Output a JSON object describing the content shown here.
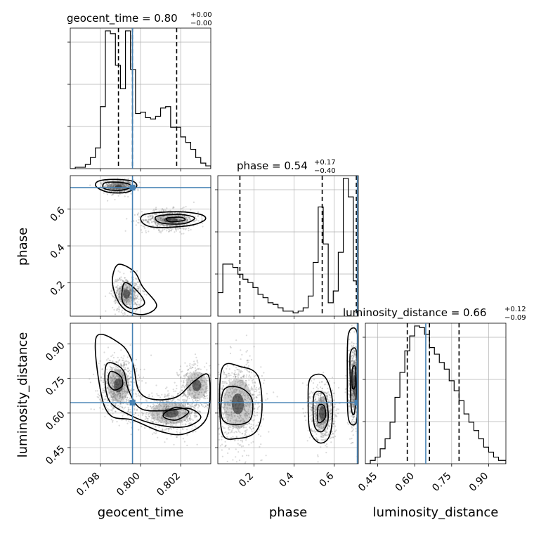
{
  "chart_data": {
    "type": "corner",
    "parameters": [
      "geocent_time",
      "phase",
      "luminosity_distance"
    ],
    "truth": {
      "geocent_time": 0.7996,
      "phase": 0.715,
      "luminosity_distance": 0.645
    },
    "colors": {
      "truth": "#4682b4",
      "hist": "#000000",
      "grid": "#b0b0b0",
      "scatter": "#555555"
    },
    "panels": {
      "geocent_time_hist": {
        "title_main": "geocent_time = 0.80",
        "title_sup": "+0.00",
        "title_sub": "−0.00",
        "xlim": [
          0.7965,
          0.8035
        ],
        "quantiles": [
          0.7989,
          0.7996,
          0.8018
        ],
        "bins": [
          0.7965,
          0.79675,
          0.797,
          0.79725,
          0.7975,
          0.79775,
          0.798,
          0.79825,
          0.7985,
          0.79875,
          0.799,
          0.79925,
          0.7995,
          0.79975,
          0.8,
          0.80025,
          0.8005,
          0.80075,
          0.801,
          0.80125,
          0.8015,
          0.80175,
          0.802,
          0.80225,
          0.8025,
          0.80275,
          0.803,
          0.80325,
          0.8035
        ],
        "counts": [
          0,
          1,
          1,
          3,
          8,
          15,
          45,
          100,
          98,
          75,
          58,
          100,
          72,
          40,
          41,
          37,
          36,
          38,
          44,
          45,
          30,
          30,
          23,
          19,
          14,
          8,
          4,
          2
        ]
      },
      "phase_hist": {
        "title_main": "phase = 0.54",
        "title_sup": "+0.17",
        "title_sub": "−0.40",
        "xlim": [
          0.02,
          0.72
        ],
        "quantiles": [
          0.13,
          0.54,
          0.71
        ],
        "bins": [
          0.02,
          0.045,
          0.07,
          0.095,
          0.12,
          0.145,
          0.17,
          0.195,
          0.22,
          0.245,
          0.27,
          0.295,
          0.32,
          0.345,
          0.37,
          0.395,
          0.42,
          0.445,
          0.47,
          0.495,
          0.52,
          0.545,
          0.57,
          0.595,
          0.62,
          0.645,
          0.67,
          0.695,
          0.72
        ],
        "counts": [
          14,
          31,
          31,
          29,
          25,
          22,
          20,
          17,
          13,
          11,
          8,
          7,
          5,
          3,
          3,
          2,
          3,
          5,
          12,
          32,
          65,
          43,
          8,
          15,
          38,
          82,
          71,
          21
        ]
      },
      "luminosity_distance_hist": {
        "title_main": "luminosity_distance = 0.66",
        "title_sup": "+0.12",
        "title_sub": "−0.09",
        "xlim": [
          0.4,
          0.97
        ],
        "quantiles": [
          0.57,
          0.66,
          0.78
        ],
        "bins": [
          0.4,
          0.42,
          0.44,
          0.46,
          0.48,
          0.5,
          0.52,
          0.54,
          0.56,
          0.58,
          0.6,
          0.62,
          0.64,
          0.66,
          0.68,
          0.7,
          0.72,
          0.74,
          0.76,
          0.78,
          0.8,
          0.82,
          0.84,
          0.86,
          0.88,
          0.9,
          0.92,
          0.94,
          0.97
        ],
        "counts": [
          0,
          2,
          4,
          9,
          15,
          25,
          40,
          55,
          68,
          77,
          83,
          82,
          78,
          70,
          66,
          61,
          57,
          50,
          44,
          38,
          30,
          25,
          20,
          15,
          10,
          7,
          4,
          2
        ]
      },
      "geocent_phase": {
        "xlim": [
          0.7965,
          0.8035
        ],
        "ylim": [
          0.02,
          0.78
        ],
        "blobs": [
          {
            "cx": 0.7989,
            "cy": 0.72,
            "sx": 0.00035,
            "sy": 0.018,
            "n": 700
          },
          {
            "cx": 0.8015,
            "cy": 0.54,
            "sx": 0.0007,
            "sy": 0.028,
            "n": 700
          },
          {
            "cx": 0.7993,
            "cy": 0.14,
            "sx": 0.00035,
            "sy": 0.05,
            "n": 500
          }
        ],
        "contours": [
          [
            [
              0.7979,
              0.75
            ],
            [
              0.7987,
              0.76
            ],
            [
              0.7996,
              0.75
            ],
            [
              0.7998,
              0.72
            ],
            [
              0.7993,
              0.69
            ],
            [
              0.7984,
              0.69
            ],
            [
              0.7978,
              0.72
            ]
          ],
          [
            [
              0.7982,
              0.74
            ],
            [
              0.7988,
              0.745
            ],
            [
              0.7994,
              0.735
            ],
            [
              0.7995,
              0.715
            ],
            [
              0.7989,
              0.7
            ],
            [
              0.7982,
              0.71
            ]
          ],
          [
            [
              0.8002,
              0.57
            ],
            [
              0.8018,
              0.585
            ],
            [
              0.803,
              0.57
            ],
            [
              0.8032,
              0.54
            ],
            [
              0.8024,
              0.51
            ],
            [
              0.8008,
              0.5
            ],
            [
              0.8001,
              0.525
            ]
          ],
          [
            [
              0.8008,
              0.56
            ],
            [
              0.802,
              0.57
            ],
            [
              0.8027,
              0.55
            ],
            [
              0.8021,
              0.52
            ],
            [
              0.801,
              0.525
            ]
          ],
          [
            [
              0.8013,
              0.55
            ],
            [
              0.802,
              0.555
            ],
            [
              0.8022,
              0.54
            ],
            [
              0.8015,
              0.53
            ]
          ],
          [
            [
              0.7989,
              0.3
            ],
            [
              0.7997,
              0.26
            ],
            [
              0.8001,
              0.18
            ],
            [
              0.8008,
              0.08
            ],
            [
              0.8002,
              0.03
            ],
            [
              0.7993,
              0.05
            ],
            [
              0.7988,
              0.12
            ],
            [
              0.7986,
              0.22
            ]
          ],
          [
            [
              0.7992,
              0.2
            ],
            [
              0.7998,
              0.16
            ],
            [
              0.8002,
              0.09
            ],
            [
              0.7996,
              0.06
            ],
            [
              0.7991,
              0.1
            ]
          ]
        ]
      },
      "geocent_lumdist": {
        "xlim": [
          0.7965,
          0.8035
        ],
        "ylim": [
          0.38,
          0.99
        ],
        "blobs": [
          {
            "cx": 0.7989,
            "cy": 0.72,
            "sx": 0.00045,
            "sy": 0.06,
            "n": 800
          },
          {
            "cx": 0.8015,
            "cy": 0.6,
            "sx": 0.0008,
            "sy": 0.04,
            "n": 700
          },
          {
            "cx": 0.8028,
            "cy": 0.72,
            "sx": 0.00045,
            "sy": 0.05,
            "n": 400
          }
        ],
        "contours": [
          [
            [
              0.7978,
              0.93
            ],
            [
              0.799,
              0.9
            ],
            [
              0.7996,
              0.82
            ],
            [
              0.7999,
              0.7
            ],
            [
              0.8006,
              0.66
            ],
            [
              0.8018,
              0.67
            ],
            [
              0.8027,
              0.74
            ],
            [
              0.8034,
              0.76
            ],
            [
              0.8033,
              0.58
            ],
            [
              0.8022,
              0.51
            ],
            [
              0.801,
              0.52
            ],
            [
              0.7996,
              0.57
            ],
            [
              0.7985,
              0.59
            ],
            [
              0.798,
              0.7
            ]
          ],
          [
            [
              0.7983,
              0.81
            ],
            [
              0.7991,
              0.79
            ],
            [
              0.7994,
              0.7
            ],
            [
              0.8,
              0.62
            ],
            [
              0.8012,
              0.61
            ],
            [
              0.8024,
              0.62
            ],
            [
              0.803,
              0.58
            ],
            [
              0.8022,
              0.54
            ],
            [
              0.8008,
              0.55
            ],
            [
              0.7995,
              0.59
            ],
            [
              0.7984,
              0.66
            ]
          ],
          [
            [
              0.7985,
              0.78
            ],
            [
              0.799,
              0.76
            ],
            [
              0.7991,
              0.72
            ],
            [
              0.7987,
              0.7
            ],
            [
              0.7984,
              0.73
            ]
          ],
          [
            [
              0.8012,
              0.6
            ],
            [
              0.8018,
              0.625
            ],
            [
              0.8024,
              0.605
            ],
            [
              0.8018,
              0.57
            ],
            [
              0.8012,
              0.58
            ]
          ]
        ]
      },
      "phase_lumdist": {
        "xlim": [
          0.02,
          0.72
        ],
        "ylim": [
          0.38,
          0.99
        ],
        "blobs": [
          {
            "cx": 0.12,
            "cy": 0.64,
            "sx": 0.06,
            "sy": 0.09,
            "n": 900
          },
          {
            "cx": 0.54,
            "cy": 0.6,
            "sx": 0.03,
            "sy": 0.06,
            "n": 800
          },
          {
            "cx": 0.7,
            "cy": 0.72,
            "sx": 0.015,
            "sy": 0.09,
            "n": 800
          }
        ],
        "contours": [
          [
            [
              0.04,
              0.79
            ],
            [
              0.14,
              0.8
            ],
            [
              0.22,
              0.76
            ],
            [
              0.24,
              0.62
            ],
            [
              0.21,
              0.52
            ],
            [
              0.12,
              0.49
            ],
            [
              0.04,
              0.52
            ]
          ],
          [
            [
              0.05,
              0.7
            ],
            [
              0.13,
              0.71
            ],
            [
              0.19,
              0.66
            ],
            [
              0.18,
              0.57
            ],
            [
              0.1,
              0.55
            ],
            [
              0.04,
              0.58
            ]
          ],
          [
            [
              0.48,
              0.75
            ],
            [
              0.55,
              0.76
            ],
            [
              0.59,
              0.66
            ],
            [
              0.58,
              0.51
            ],
            [
              0.53,
              0.47
            ],
            [
              0.48,
              0.52
            ],
            [
              0.47,
              0.64
            ]
          ],
          [
            [
              0.5,
              0.68
            ],
            [
              0.55,
              0.68
            ],
            [
              0.57,
              0.58
            ],
            [
              0.54,
              0.52
            ],
            [
              0.5,
              0.55
            ]
          ],
          [
            [
              0.52,
              0.63
            ],
            [
              0.55,
              0.63
            ],
            [
              0.555,
              0.58
            ],
            [
              0.52,
              0.56
            ]
          ],
          [
            [
              0.67,
              0.94
            ],
            [
              0.71,
              0.96
            ],
            [
              0.72,
              0.85
            ],
            [
              0.715,
              0.6
            ],
            [
              0.7,
              0.55
            ],
            [
              0.67,
              0.58
            ],
            [
              0.665,
              0.75
            ]
          ],
          [
            [
              0.68,
              0.86
            ],
            [
              0.71,
              0.87
            ],
            [
              0.712,
              0.72
            ],
            [
              0.7,
              0.6
            ],
            [
              0.685,
              0.62
            ],
            [
              0.68,
              0.74
            ]
          ],
          [
            [
              0.69,
              0.79
            ],
            [
              0.705,
              0.8
            ],
            [
              0.705,
              0.72
            ],
            [
              0.69,
              0.71
            ]
          ]
        ]
      }
    },
    "tick_labels": {
      "geocent_x": [
        "0.798",
        "0.800",
        "0.802"
      ],
      "geocent_x_vals": [
        0.798,
        0.8,
        0.802
      ],
      "phase_x": [
        "0.2",
        "0.4",
        "0.6"
      ],
      "phase_x_vals": [
        0.2,
        0.4,
        0.6
      ],
      "lumdist_x": [
        "0.45",
        "0.60",
        "0.75",
        "0.90"
      ],
      "lumdist_x_vals": [
        0.45,
        0.6,
        0.75,
        0.9
      ],
      "phase_y": [
        "0.2",
        "0.4",
        "0.6"
      ],
      "phase_y_vals": [
        0.2,
        0.4,
        0.6
      ],
      "lumdist_y": [
        "0.45",
        "0.60",
        "0.75",
        "0.90"
      ],
      "lumdist_y_vals": [
        0.45,
        0.6,
        0.75,
        0.9
      ]
    },
    "axis_labels": {
      "x": [
        "geocent_time",
        "phase",
        "luminosity_distance"
      ],
      "y": [
        "phase",
        "luminosity_distance"
      ]
    }
  }
}
